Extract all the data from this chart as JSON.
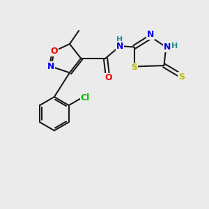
{
  "background_color": "#ebebeb",
  "bond_color": "#1a1a1a",
  "atom_colors": {
    "N": "#0000ee",
    "O": "#ee0000",
    "S": "#bbbb00",
    "Cl": "#00bb00",
    "C": "#1a1a1a",
    "H": "#2a8a8a"
  },
  "figsize": [
    3.0,
    3.0
  ],
  "dpi": 100
}
